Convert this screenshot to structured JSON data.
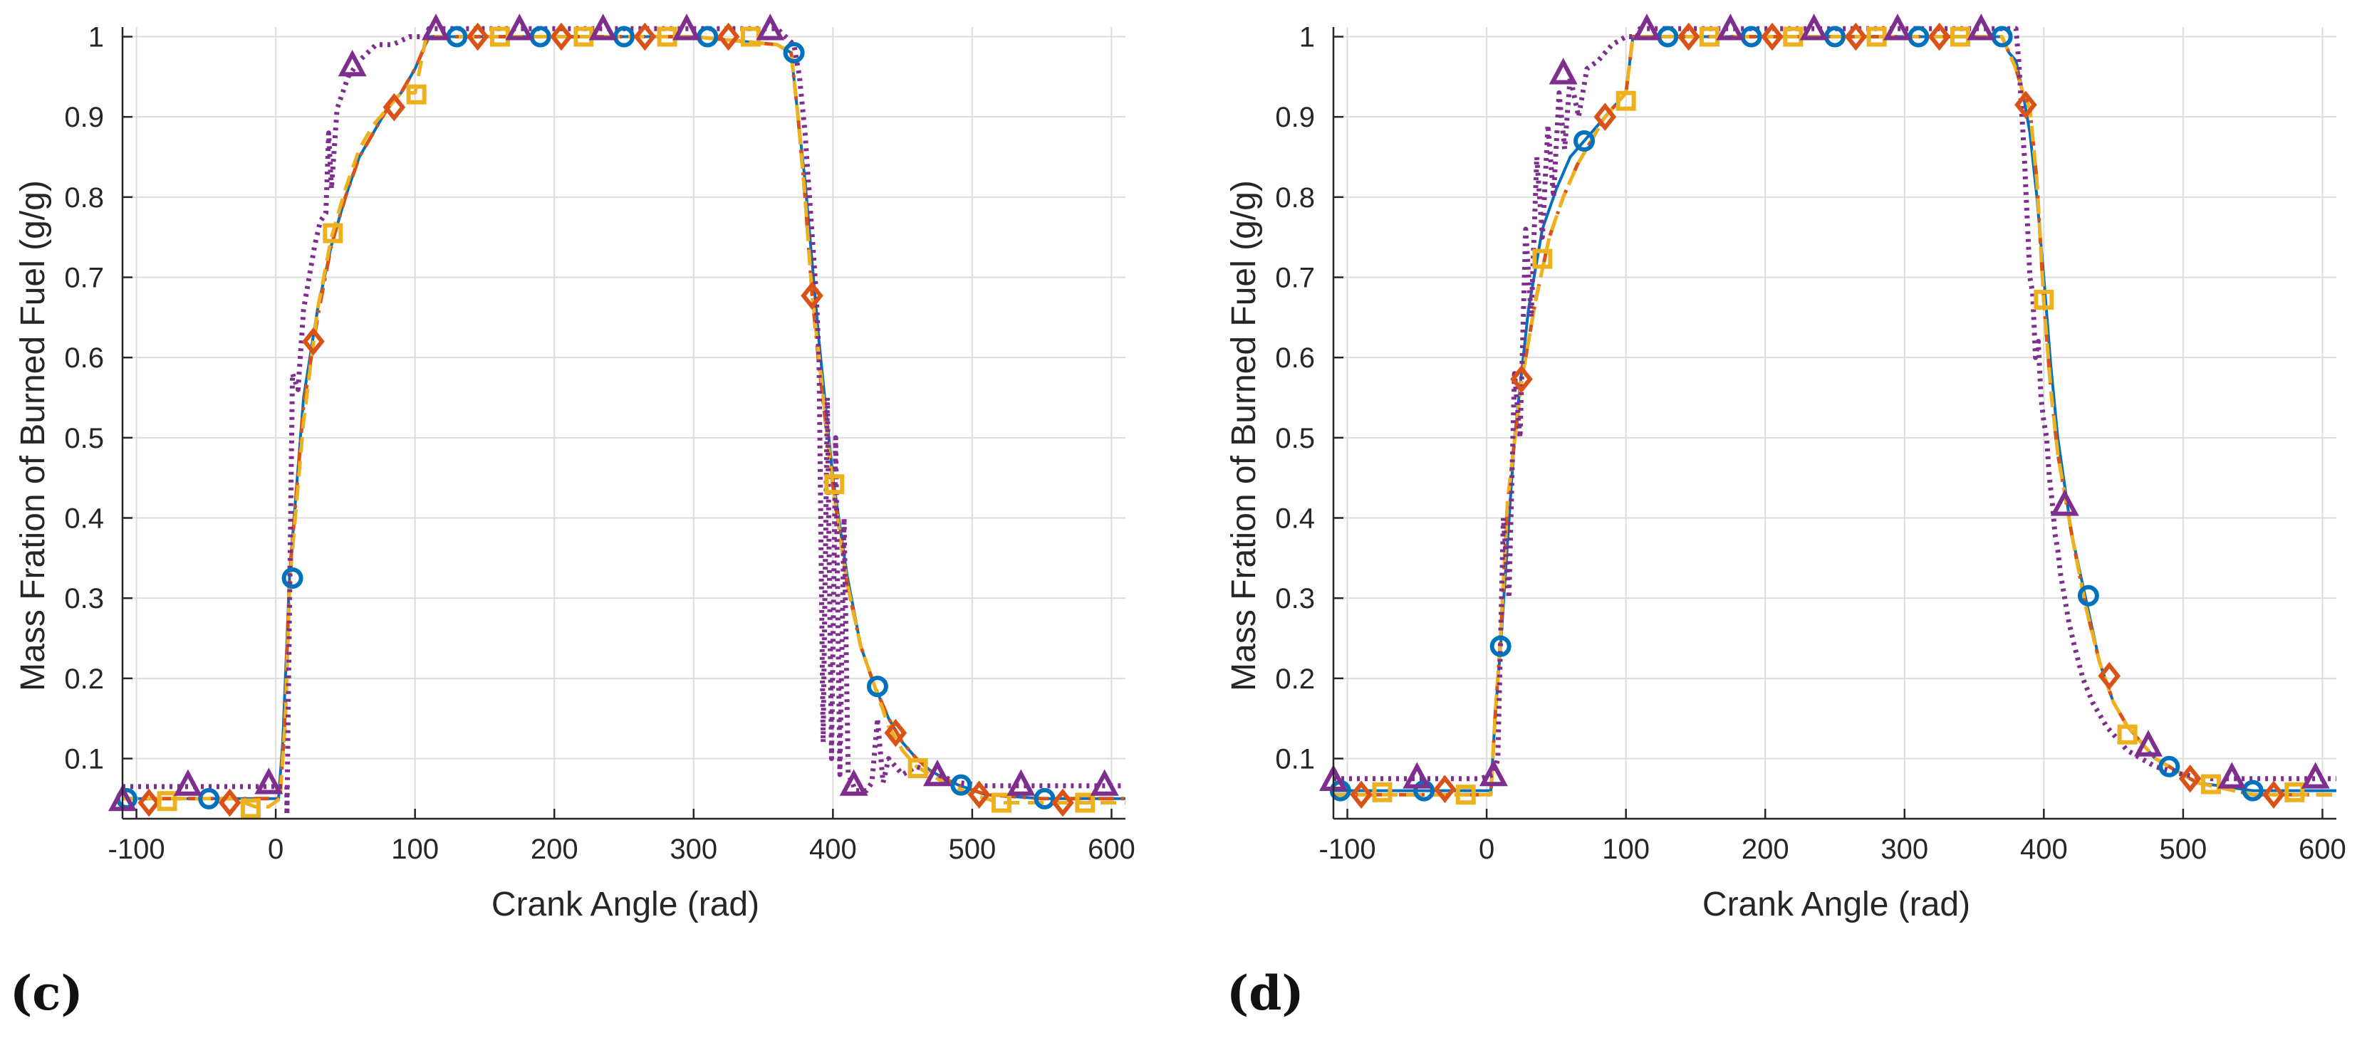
{
  "colors": {
    "blue": "#0072bd",
    "orange": "#d95319",
    "yellow": "#edb120",
    "purple": "#7e2f8e",
    "grid": "#dddddd",
    "axis": "#262626",
    "text": "#262626"
  },
  "chart_data": [
    {
      "panel": "(c)",
      "type": "line",
      "xlabel": "Crank Angle (rad)",
      "ylabel": "Mass Fration of Burned Fuel (g/g)",
      "xlim": [
        -110,
        610
      ],
      "ylim": [
        0.025,
        1.012
      ],
      "xticks": [
        -100,
        0,
        100,
        200,
        300,
        400,
        500,
        600
      ],
      "yticks": [
        0.1,
        0.2,
        0.3,
        0.4,
        0.5,
        0.6,
        0.7,
        0.8,
        0.9,
        1
      ],
      "grid": true,
      "series": [
        {
          "name": "circle",
          "color": "#0072bd",
          "line": "solid",
          "marker": "circle",
          "x": [
            -110,
            -60,
            -10,
            2,
            5,
            10,
            20,
            30,
            40,
            50,
            60,
            70,
            80,
            90,
            100,
            110,
            130,
            200,
            300,
            360,
            370,
            375,
            380,
            385,
            390,
            400,
            410,
            420,
            430,
            440,
            450,
            460,
            470,
            480,
            490,
            510,
            550,
            610
          ],
          "y": [
            0.05,
            0.05,
            0.05,
            0.05,
            0.12,
            0.33,
            0.55,
            0.66,
            0.74,
            0.8,
            0.85,
            0.88,
            0.91,
            0.93,
            0.96,
            1,
            1,
            1,
            1,
            0.99,
            0.98,
            0.9,
            0.82,
            0.72,
            0.62,
            0.45,
            0.33,
            0.24,
            0.19,
            0.15,
            0.12,
            0.1,
            0.085,
            0.075,
            0.067,
            0.055,
            0.05,
            0.05
          ],
          "markers_x": [
            -107,
            -48,
            12,
            130,
            190,
            250,
            310,
            372,
            432,
            492,
            552
          ],
          "markers_y": [
            0.05,
            0.05,
            0.325,
            1,
            1,
            1,
            1,
            0.98,
            0.19,
            0.067,
            0.05
          ]
        },
        {
          "name": "diamond",
          "color": "#d95319",
          "line": "dashdot",
          "marker": "diamond",
          "x": [
            -110,
            -60,
            -10,
            3,
            6,
            10,
            20,
            30,
            40,
            50,
            60,
            70,
            80,
            90,
            100,
            110,
            140,
            200,
            300,
            360,
            370,
            375,
            380,
            385,
            390,
            400,
            410,
            420,
            430,
            440,
            450,
            460,
            470,
            480,
            490,
            510,
            550,
            610
          ],
          "y": [
            0.05,
            0.05,
            0.05,
            0.05,
            0.13,
            0.33,
            0.54,
            0.65,
            0.74,
            0.8,
            0.85,
            0.88,
            0.91,
            0.93,
            0.96,
            1,
            1,
            1,
            1,
            0.99,
            0.98,
            0.9,
            0.8,
            0.68,
            0.59,
            0.44,
            0.32,
            0.24,
            0.19,
            0.15,
            0.12,
            0.1,
            0.085,
            0.075,
            0.067,
            0.055,
            0.05,
            0.05
          ],
          "markers_x": [
            -91,
            -33,
            27,
            85,
            145,
            205,
            265,
            325,
            385,
            445,
            505,
            565
          ],
          "markers_y": [
            0.045,
            0.045,
            0.62,
            0.912,
            1,
            1,
            1,
            1,
            0.677,
            0.132,
            0.055,
            0.045
          ]
        },
        {
          "name": "square",
          "color": "#edb120",
          "line": "dashed",
          "marker": "square",
          "x": [
            -110,
            -30,
            -15,
            -5,
            3,
            7,
            10,
            20,
            30,
            40,
            50,
            60,
            70,
            80,
            90,
            100,
            108,
            150,
            200,
            300,
            360,
            370,
            375,
            380,
            385,
            390,
            400,
            410,
            420,
            430,
            440,
            450,
            460,
            470,
            480,
            500,
            520,
            560,
            610
          ],
          "y": [
            0.05,
            0.05,
            0.04,
            0.04,
            0.05,
            0.15,
            0.32,
            0.52,
            0.66,
            0.75,
            0.81,
            0.86,
            0.89,
            0.91,
            0.93,
            0.93,
            1,
            1,
            1,
            1,
            0.99,
            0.98,
            0.9,
            0.8,
            0.68,
            0.6,
            0.44,
            0.32,
            0.24,
            0.19,
            0.14,
            0.11,
            0.09,
            0.08,
            0.07,
            0.055,
            0.045,
            0.045,
            0.045
          ],
          "markers_x": [
            -78,
            -18,
            41,
            101,
            161,
            221,
            281,
            341,
            401,
            461,
            521,
            581
          ],
          "markers_y": [
            0.047,
            0.038,
            0.755,
            0.928,
            1,
            1,
            1,
            1,
            0.442,
            0.088,
            0.045,
            0.045
          ]
        },
        {
          "name": "triangle",
          "color": "#7e2f8e",
          "line": "dotted",
          "marker": "triangle",
          "x": [
            -110,
            -5,
            8,
            8,
            12,
            16,
            20,
            24,
            28,
            32,
            36,
            38,
            40,
            44,
            52,
            60,
            72,
            84,
            96,
            108,
            110,
            360,
            372,
            376,
            380,
            384,
            388,
            390,
            393,
            396,
            399,
            402,
            405,
            408,
            411,
            414,
            416,
            420,
            424,
            428,
            432,
            436,
            440,
            450,
            460,
            475,
            490,
            510,
            610
          ],
          "y": [
            0.065,
            0.065,
            0.065,
            0.03,
            0.58,
            0.56,
            0.66,
            0.7,
            0.74,
            0.77,
            0.78,
            0.88,
            0.81,
            0.91,
            0.95,
            0.97,
            0.99,
            0.99,
            1,
            1,
            1.01,
            1.01,
            0.99,
            0.95,
            0.88,
            0.78,
            0.68,
            0.6,
            0.12,
            0.55,
            0.1,
            0.5,
            0.08,
            0.4,
            0.08,
            0.07,
            0.06,
            0.06,
            0.06,
            0.07,
            0.15,
            0.07,
            0.1,
            0.08,
            0.09,
            0.08,
            0.07,
            0.066,
            0.066
          ],
          "markers_x": [
            -110,
            -63,
            -5,
            55,
            115,
            175,
            235,
            295,
            355,
            415,
            475,
            535,
            595
          ],
          "markers_y": [
            0.047,
            0.066,
            0.068,
            0.963,
            1.008,
            1.008,
            1.008,
            1.008,
            1.008,
            0.066,
            0.078,
            0.066,
            0.066
          ]
        }
      ]
    },
    {
      "panel": "(d)",
      "type": "line",
      "xlabel": "Crank Angle (rad)",
      "ylabel": "Mass Fration of Burned Fuel (g/g)",
      "xlim": [
        -110,
        610
      ],
      "ylim": [
        0.025,
        1.012
      ],
      "xticks": [
        -100,
        0,
        100,
        200,
        300,
        400,
        500,
        600
      ],
      "yticks": [
        0.1,
        0.2,
        0.3,
        0.4,
        0.5,
        0.6,
        0.7,
        0.8,
        0.9,
        1
      ],
      "grid": true,
      "series": [
        {
          "name": "circle",
          "color": "#0072bd",
          "line": "solid",
          "marker": "circle",
          "x": [
            -110,
            -60,
            -10,
            3,
            6,
            10,
            20,
            30,
            40,
            50,
            60,
            70,
            80,
            90,
            100,
            105,
            130,
            200,
            300,
            370,
            375,
            380,
            385,
            390,
            395,
            400,
            405,
            410,
            420,
            430,
            440,
            450,
            460,
            470,
            480,
            490,
            510,
            550,
            610
          ],
          "y": [
            0.06,
            0.06,
            0.06,
            0.06,
            0.15,
            0.24,
            0.5,
            0.66,
            0.76,
            0.81,
            0.85,
            0.87,
            0.89,
            0.91,
            0.93,
            1,
            1,
            1,
            1,
            1,
            0.98,
            0.97,
            0.93,
            0.88,
            0.8,
            0.7,
            0.59,
            0.5,
            0.38,
            0.3,
            0.22,
            0.17,
            0.14,
            0.12,
            0.1,
            0.09,
            0.07,
            0.06,
            0.06
          ],
          "markers_x": [
            -105,
            -45,
            10,
            70,
            130,
            190,
            250,
            310,
            370,
            432,
            490,
            550
          ],
          "markers_y": [
            0.06,
            0.06,
            0.24,
            0.87,
            1,
            1,
            1,
            1,
            1,
            0.303,
            0.09,
            0.06
          ]
        },
        {
          "name": "diamond",
          "color": "#d95319",
          "line": "dashdot",
          "marker": "diamond",
          "x": [
            -110,
            -60,
            -10,
            3,
            6,
            10,
            15,
            25,
            35,
            45,
            55,
            65,
            75,
            85,
            95,
            100,
            105,
            150,
            200,
            300,
            370,
            375,
            380,
            385,
            390,
            395,
            400,
            405,
            410,
            420,
            430,
            440,
            450,
            460,
            470,
            480,
            490,
            510,
            550,
            610
          ],
          "y": [
            0.055,
            0.055,
            0.055,
            0.055,
            0.15,
            0.25,
            0.42,
            0.57,
            0.67,
            0.75,
            0.8,
            0.84,
            0.87,
            0.9,
            0.92,
            0.93,
            1,
            1,
            1,
            1,
            1,
            0.98,
            0.96,
            0.93,
            0.91,
            0.82,
            0.67,
            0.56,
            0.48,
            0.38,
            0.29,
            0.22,
            0.17,
            0.14,
            0.12,
            0.1,
            0.09,
            0.07,
            0.055,
            0.055
          ],
          "markers_x": [
            -90,
            -30,
            25,
            85,
            145,
            205,
            265,
            325,
            387,
            447,
            505,
            565
          ],
          "markers_y": [
            0.055,
            0.062,
            0.573,
            0.9,
            1,
            1,
            1,
            1,
            0.915,
            0.203,
            0.075,
            0.055
          ]
        },
        {
          "name": "square",
          "color": "#edb120",
          "line": "dashed",
          "marker": "square",
          "x": [
            -110,
            -60,
            -10,
            3,
            6,
            10,
            15,
            25,
            35,
            45,
            55,
            65,
            75,
            85,
            95,
            100,
            105,
            150,
            200,
            300,
            370,
            375,
            380,
            385,
            390,
            395,
            400,
            405,
            410,
            420,
            430,
            440,
            450,
            460,
            470,
            480,
            490,
            510,
            550,
            610
          ],
          "y": [
            0.055,
            0.055,
            0.055,
            0.055,
            0.15,
            0.25,
            0.42,
            0.57,
            0.67,
            0.75,
            0.8,
            0.84,
            0.87,
            0.9,
            0.92,
            0.93,
            1,
            1,
            1,
            1,
            1,
            0.98,
            0.96,
            0.93,
            0.91,
            0.82,
            0.67,
            0.56,
            0.48,
            0.38,
            0.29,
            0.22,
            0.17,
            0.14,
            0.12,
            0.1,
            0.09,
            0.07,
            0.055,
            0.055
          ],
          "markers_x": [
            -75,
            -15,
            40,
            100,
            160,
            220,
            280,
            340,
            400,
            460,
            520,
            580
          ],
          "markers_y": [
            0.058,
            0.055,
            0.723,
            0.92,
            1,
            1,
            1,
            1,
            0.672,
            0.13,
            0.068,
            0.058
          ]
        },
        {
          "name": "triangle",
          "color": "#7e2f8e",
          "line": "dotted",
          "marker": "triangle",
          "x": [
            -110,
            -5,
            5,
            8,
            12,
            16,
            20,
            24,
            28,
            32,
            36,
            40,
            44,
            48,
            52,
            56,
            60,
            66,
            72,
            80,
            90,
            100,
            108,
            110,
            380,
            382,
            386,
            390,
            392,
            394,
            396,
            398,
            400,
            402,
            404,
            406,
            408,
            410,
            412,
            414,
            418,
            422,
            428,
            435,
            445,
            460,
            480,
            500,
            520,
            610
          ],
          "y": [
            0.075,
            0.075,
            0.08,
            0.1,
            0.4,
            0.3,
            0.58,
            0.5,
            0.76,
            0.65,
            0.85,
            0.75,
            0.89,
            0.8,
            0.93,
            0.86,
            0.95,
            0.9,
            0.96,
            0.97,
            0.99,
            1,
            1,
            1.01,
            1.01,
            0.97,
            0.85,
            0.7,
            0.68,
            0.6,
            0.62,
            0.55,
            0.52,
            0.5,
            0.45,
            0.42,
            0.38,
            0.36,
            0.33,
            0.31,
            0.27,
            0.24,
            0.2,
            0.17,
            0.14,
            0.11,
            0.09,
            0.08,
            0.075,
            0.075
          ],
          "markers_x": [
            -110,
            -50,
            5,
            55,
            115,
            175,
            235,
            295,
            355,
            415,
            475,
            535,
            595
          ],
          "markers_y": [
            0.072,
            0.075,
            0.078,
            0.953,
            1.008,
            1.008,
            1.008,
            1.008,
            1.008,
            0.415,
            0.115,
            0.075,
            0.075
          ]
        }
      ]
    }
  ]
}
